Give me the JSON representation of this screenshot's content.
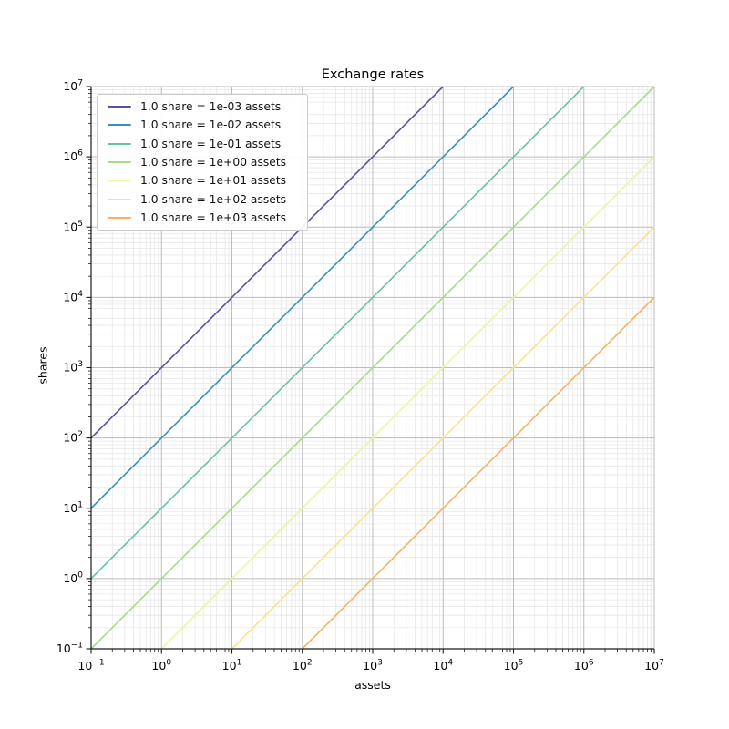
{
  "chart_data": {
    "type": "line",
    "title": "Exchange rates",
    "xlabel": "assets",
    "ylabel": "shares",
    "x_scale": "log",
    "y_scale": "log",
    "xlim": [
      0.1,
      10000000
    ],
    "ylim": [
      0.1,
      10000000
    ],
    "tick_exponents": [
      -1,
      0,
      1,
      2,
      3,
      4,
      5,
      6,
      7
    ],
    "grid": {
      "major": true,
      "minor": true,
      "major_color": "#bcbcbc",
      "minor_color": "#e7e7e7"
    },
    "legend_position": "upper left",
    "legend_border_color": "#cccccc",
    "spine_color": "#1a1a1a",
    "series": [
      {
        "label": "1.0 share = 1e-03 assets",
        "assets_per_share": 0.001,
        "color": "#5e4fa2",
        "x_range": [
          0.1,
          10000
        ],
        "y_range": [
          100,
          10000000
        ]
      },
      {
        "label": "1.0 share = 1e-02 assets",
        "assets_per_share": 0.01,
        "color": "#3690c0",
        "x_range": [
          0.1,
          100000
        ],
        "y_range": [
          10,
          10000000
        ]
      },
      {
        "label": "1.0 share = 1e-01 assets",
        "assets_per_share": 0.1,
        "color": "#66c49e",
        "x_range": [
          0.1,
          1000000
        ],
        "y_range": [
          1,
          10000000
        ]
      },
      {
        "label": "1.0 share = 1e+00 assets",
        "assets_per_share": 1,
        "color": "#a6dc87",
        "x_range": [
          0.1,
          10000000
        ],
        "y_range": [
          0.1,
          10000000
        ]
      },
      {
        "label": "1.0 share = 1e+01 assets",
        "assets_per_share": 10,
        "color": "#e9f6a1",
        "x_range": [
          1,
          10000000
        ],
        "y_range": [
          0.1,
          1000000
        ]
      },
      {
        "label": "1.0 share = 1e+02 assets",
        "assets_per_share": 100,
        "color": "#fee08b",
        "x_range": [
          10,
          10000000
        ],
        "y_range": [
          0.1,
          100000
        ]
      },
      {
        "label": "1.0 share = 1e+03 assets",
        "assets_per_share": 1000,
        "color": "#fdae61",
        "x_range": [
          100,
          10000000
        ],
        "y_range": [
          0.1,
          10000
        ]
      }
    ]
  }
}
